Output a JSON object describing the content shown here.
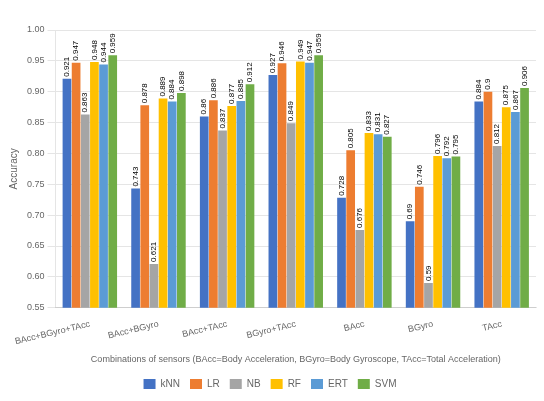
{
  "chart_data": {
    "type": "bar",
    "categories": [
      "BAcc+BGyro+TAcc",
      "BAcc+BGyro",
      "BAcc+TAcc",
      "BGyro+TAcc",
      "BAcc",
      "BGyro",
      "TAcc"
    ],
    "series": [
      {
        "name": "kNN",
        "color": "#4472C4",
        "values": [
          0.921,
          0.743,
          0.86,
          0.927,
          0.728,
          0.69,
          0.884
        ]
      },
      {
        "name": "LR",
        "color": "#ED7D31",
        "values": [
          0.947,
          0.878,
          0.886,
          0.946,
          0.805,
          0.746,
          0.9
        ]
      },
      {
        "name": "NB",
        "color": "#A5A5A5",
        "values": [
          0.863,
          0.621,
          0.837,
          0.849,
          0.676,
          0.59,
          0.812
        ]
      },
      {
        "name": "RF",
        "color": "#FFC000",
        "values": [
          0.948,
          0.889,
          0.877,
          0.949,
          0.833,
          0.796,
          0.875
        ]
      },
      {
        "name": "ERT",
        "color": "#5B9BD5",
        "values": [
          0.944,
          0.884,
          0.885,
          0.947,
          0.831,
          0.792,
          0.867
        ]
      },
      {
        "name": "SVM",
        "color": "#70AD47",
        "values": [
          0.959,
          0.898,
          0.912,
          0.959,
          0.827,
          0.795,
          0.906
        ]
      }
    ],
    "ylabel": "Accuracy",
    "xlabel": "Combinations of sensors (BAcc=Body Acceleration, BGyro=Body Gyroscope, TAcc=Total Acceleration)",
    "ylim": [
      0.55,
      1.0
    ],
    "yticks": [
      0.55,
      {
        "value": 0.6,
        "label": "0.60"
      },
      0.65,
      {
        "value": 0.7,
        "label": "0.70"
      },
      0.75,
      {
        "value": 0.8,
        "label": "0.80"
      },
      0.85,
      {
        "value": 0.9,
        "label": "0.90"
      },
      0.95,
      {
        "value": 1.0,
        "label": "1.00"
      }
    ],
    "grid": true,
    "legend": "bottom",
    "data_labels": true
  }
}
